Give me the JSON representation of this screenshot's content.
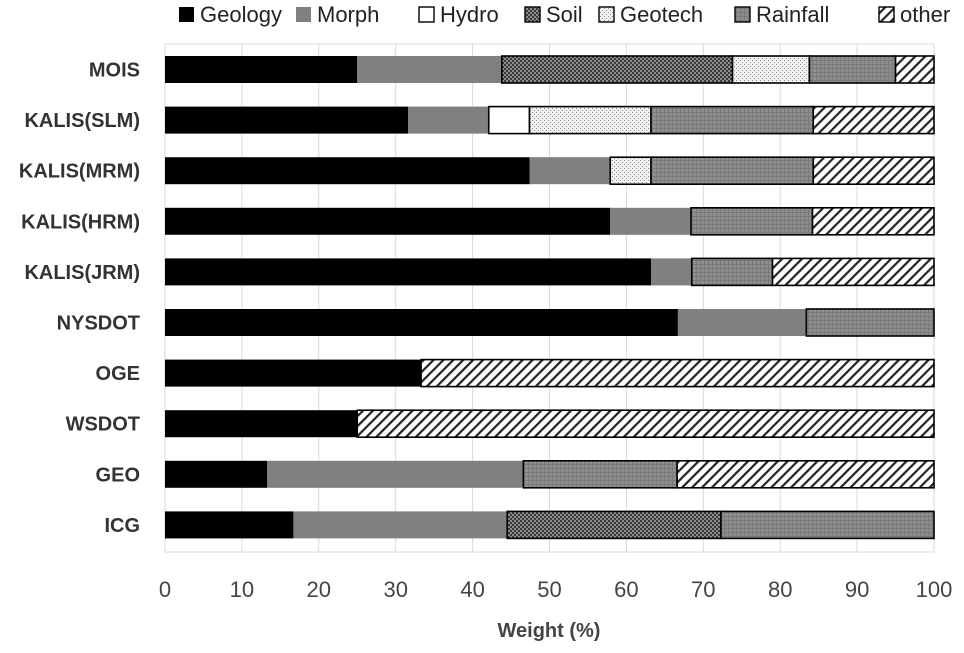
{
  "chart_data": {
    "type": "bar",
    "orientation": "horizontal",
    "stacked": true,
    "xlabel": "Weight (%)",
    "xlim": [
      0,
      100
    ],
    "xticks": [
      "0",
      "10",
      "20",
      "30",
      "40",
      "50",
      "60",
      "70",
      "80",
      "90",
      "100"
    ],
    "legend_position": "top",
    "categories": [
      "MOIS",
      "KALIS(SLM)",
      "KALIS(MRM)",
      "KALIS(HRM)",
      "KALIS(JRM)",
      "NYSDOT",
      "OGE",
      "WSDOT",
      "GEO",
      "ICG"
    ],
    "series": [
      {
        "name": "Geology",
        "fill": "solid-black",
        "values": [
          25,
          31.6,
          47.4,
          57.9,
          63.2,
          66.7,
          33.3,
          25,
          13.3,
          16.7
        ]
      },
      {
        "name": "Morph",
        "fill": "solid-gray",
        "values": [
          18.8,
          10.5,
          10.5,
          10.5,
          5.3,
          16.7,
          0,
          0,
          33.3,
          27.8
        ]
      },
      {
        "name": "Hydro",
        "fill": "white",
        "values": [
          0,
          5.3,
          0,
          0,
          0,
          0,
          0,
          0,
          0,
          0
        ]
      },
      {
        "name": "Soil",
        "fill": "dense-dots",
        "values": [
          30,
          0,
          0,
          0,
          0,
          0,
          0,
          0,
          0,
          27.8
        ]
      },
      {
        "name": "Geotech",
        "fill": "light-dots",
        "values": [
          10,
          15.8,
          5.3,
          0,
          0,
          0,
          0,
          0,
          0,
          0
        ]
      },
      {
        "name": "Rainfall",
        "fill": "gray-grid",
        "values": [
          11.2,
          21.1,
          21.1,
          15.8,
          10.5,
          16.6,
          0,
          0,
          20,
          27.7
        ]
      },
      {
        "name": "other",
        "fill": "diagonal-hatch",
        "values": [
          5,
          15.7,
          15.7,
          15.8,
          21.0,
          0,
          66.7,
          75,
          33.4,
          0
        ]
      }
    ]
  }
}
